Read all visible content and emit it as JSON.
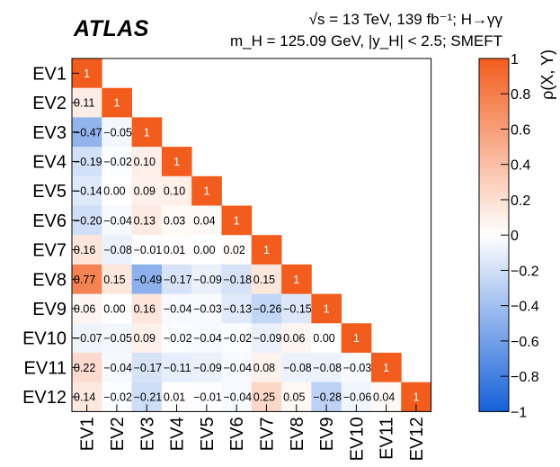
{
  "header": {
    "atlas_label": "ATLAS",
    "line1": "√s = 13 TeV, 139 fb⁻¹; H→γγ",
    "line2": "m_H = 125.09 GeV, |y_H| < 2.5; SMEFT"
  },
  "chart_data": {
    "type": "heatmap",
    "rows": [
      "EV1",
      "EV2",
      "EV3",
      "EV4",
      "EV5",
      "EV6",
      "EV7",
      "EV8",
      "EV9",
      "EV10",
      "EV11",
      "EV12"
    ],
    "columns": [
      "EV1",
      "EV2",
      "EV3",
      "EV4",
      "EV5",
      "EV6",
      "EV7",
      "EV8",
      "EV9",
      "EV10",
      "EV11",
      "EV12"
    ],
    "values": [
      [
        1
      ],
      [
        0.11,
        1
      ],
      [
        -0.47,
        -0.05,
        1
      ],
      [
        -0.19,
        -0.02,
        0.1,
        1
      ],
      [
        -0.14,
        0.0,
        0.09,
        0.1,
        1
      ],
      [
        -0.2,
        -0.04,
        0.13,
        0.03,
        0.04,
        1
      ],
      [
        0.16,
        -0.08,
        -0.01,
        0.01,
        0.0,
        0.02,
        1
      ],
      [
        0.77,
        0.15,
        -0.49,
        -0.17,
        -0.09,
        -0.18,
        0.15,
        1
      ],
      [
        0.06,
        0.0,
        0.16,
        -0.04,
        -0.03,
        -0.13,
        -0.26,
        -0.15,
        1
      ],
      [
        -0.07,
        -0.05,
        0.09,
        -0.02,
        -0.04,
        -0.02,
        -0.09,
        0.06,
        0.0,
        1
      ],
      [
        0.22,
        -0.04,
        -0.17,
        -0.11,
        -0.09,
        -0.04,
        0.08,
        -0.08,
        -0.08,
        -0.03,
        1
      ],
      [
        0.14,
        -0.02,
        -0.21,
        0.01,
        -0.01,
        -0.04,
        0.25,
        0.05,
        -0.28,
        -0.06,
        0.04,
        1
      ]
    ],
    "colorbar": {
      "label": "ρ(X, Y)",
      "range": [
        -1,
        1
      ],
      "ticks": [
        "−1",
        "−0.8",
        "−0.6",
        "−0.4",
        "−0.2",
        "0",
        "0.2",
        "0.4",
        "0.6",
        "0.8",
        "1"
      ],
      "tick_values": [
        -1,
        -0.8,
        -0.6,
        -0.4,
        -0.2,
        0,
        0.2,
        0.4,
        0.6,
        0.8,
        1
      ],
      "colors": {
        "negative": "#1560d8",
        "zero": "#ffffff",
        "positive": "#f25d1e"
      }
    }
  }
}
